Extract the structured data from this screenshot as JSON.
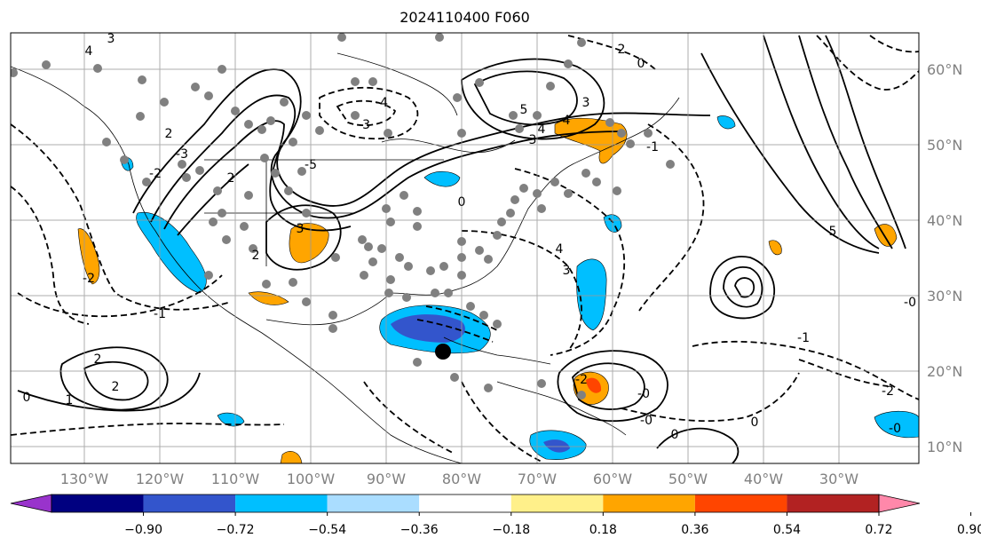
{
  "title": "2024110400 F060",
  "map": {
    "lon_ticks": [
      "130°W",
      "120°W",
      "110°W",
      "100°W",
      "90°W",
      "80°W",
      "70°W",
      "60°W",
      "50°W",
      "40°W",
      "30°W"
    ],
    "lat_ticks": [
      "60°N",
      "50°N",
      "40°N",
      "30°N",
      "20°N",
      "10°N"
    ],
    "contour_labels": [
      "4",
      "3",
      "2",
      "-2",
      "-3",
      "2",
      "5",
      "4",
      "3",
      "2",
      "0",
      "4",
      "3",
      "-4",
      "-3",
      "-5",
      "3",
      "2",
      "0",
      "-1",
      "-2",
      "2",
      "1",
      "0",
      "-1",
      "2",
      "-2",
      "-0",
      "0",
      "0",
      "-1",
      "-2",
      "-0",
      "-0",
      "3",
      "4",
      "5",
      "-0"
    ]
  },
  "colorbar": {
    "tick_labels": [
      "−0.90",
      "−0.72",
      "−0.54",
      "−0.36",
      "−0.18",
      "0.18",
      "0.36",
      "0.54",
      "0.72",
      "0.90"
    ],
    "colors": [
      "#9933cc",
      "#000080",
      "#3355cc",
      "#00bfff",
      "#aaddff",
      "#ffffff",
      "#fff08a",
      "#ffa500",
      "#ff4500",
      "#b22222",
      "#ff88aa"
    ]
  }
}
